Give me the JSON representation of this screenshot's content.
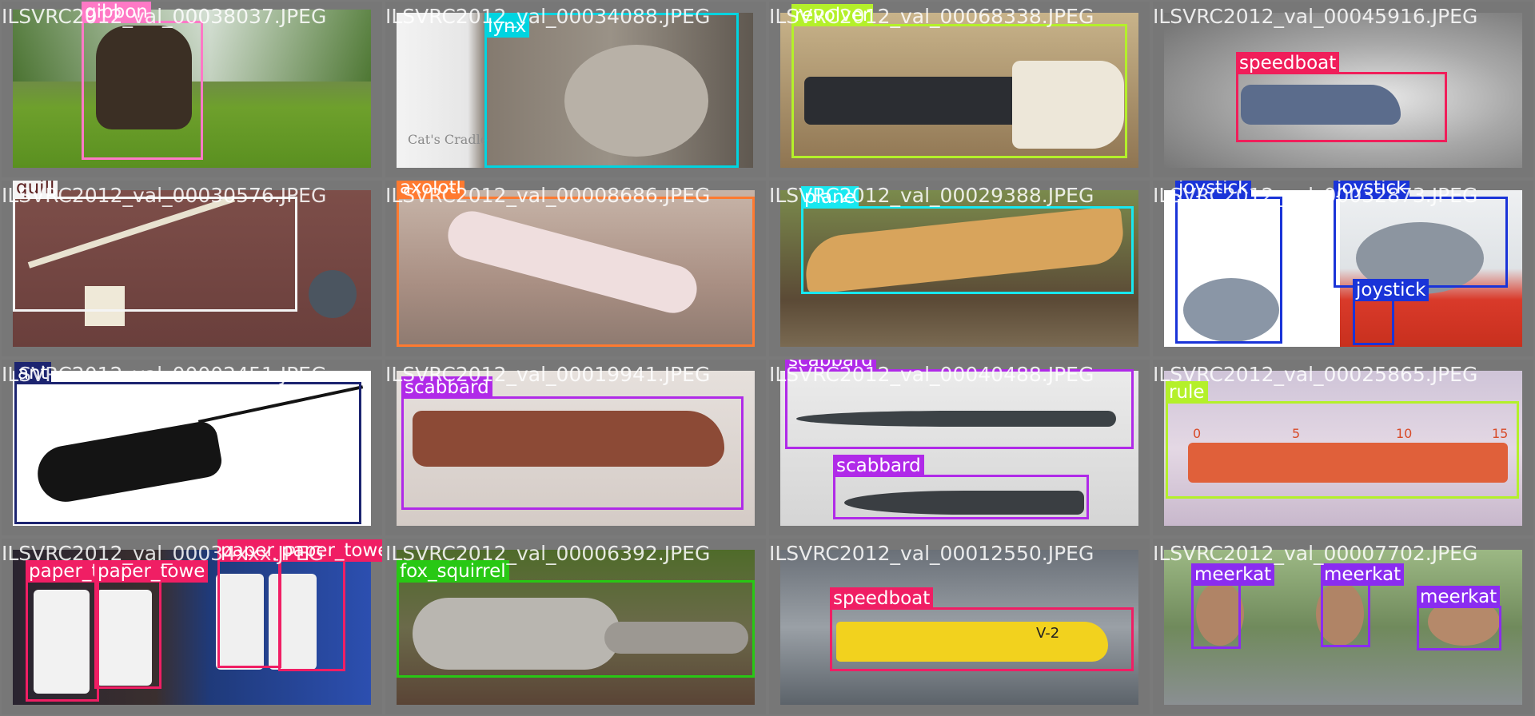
{
  "mosaic": {
    "images": [
      {
        "filename": "ILSVRC2012_val_00038037.JPEG",
        "scene": "grass park with trees",
        "objects": [
          {
            "label": "gibbon",
            "color": "#ff79c6"
          }
        ]
      },
      {
        "filename": "ILSVRC2012_val_00034088.JPEG",
        "scene": "lynx close-up",
        "objects": [
          {
            "label": "lynx",
            "color": "#00d4e0"
          }
        ],
        "texts": [
          {
            "text": "Cat's Cradle"
          }
        ]
      },
      {
        "filename": "ILSVRC2012_val_00068338.JPEG",
        "scene": "revolver on wooden planks",
        "objects": [
          {
            "label": "revolver",
            "color": "#b4f02a"
          }
        ]
      },
      {
        "filename": "ILSVRC2012_val_00045916.JPEG",
        "scene": "speedboat on spray",
        "objects": [
          {
            "label": "speedboat",
            "color": "#f01e5a"
          }
        ]
      },
      {
        "filename": "ILSVRC2012_val_00030576.JPEG",
        "scene": "quill pen on red wood",
        "objects": [
          {
            "label": "quill",
            "color": "#f4f4f4"
          }
        ]
      },
      {
        "filename": "ILSVRC2012_val_00008686.JPEG",
        "scene": "axolotl in tank",
        "objects": [
          {
            "label": "axolotl",
            "color": "#ff7a30"
          }
        ]
      },
      {
        "filename": "ILSVRC2012_val_00029388.JPEG",
        "scene": "wooden plane",
        "objects": [
          {
            "label": "plane",
            "color": "#18e8f0"
          }
        ]
      },
      {
        "filename": "ILSVRC2012_val_00032873.JPEG",
        "scene": "joysticks on white",
        "objects": [
          {
            "label": "joystick",
            "color": "#1a34d8"
          },
          {
            "label": "joystick",
            "color": "#1a34d8"
          },
          {
            "label": "joystick",
            "color": "#1a34d8"
          }
        ]
      },
      {
        "filename": "ILSVRC2012_val_00002451.JPEG",
        "scene": "ant line drawing",
        "objects": [
          {
            "label": "ant",
            "color": "#1c2470"
          }
        ]
      },
      {
        "filename": "ILSVRC2012_val_00019941.JPEG",
        "scene": "knife with leather sheath",
        "objects": [
          {
            "label": "scabbard",
            "color": "#b02ae8"
          }
        ]
      },
      {
        "filename": "ILSVRC2012_val_00040488.JPEG",
        "scene": "bayonet and scabbard",
        "objects": [
          {
            "label": "scabbard",
            "color": "#b02ae8"
          },
          {
            "label": "scabbard",
            "color": "#b02ae8"
          }
        ]
      },
      {
        "filename": "ILSVRC2012_val_00025865.JPEG",
        "scene": "orange ruler",
        "objects": [
          {
            "label": "rule",
            "color": "#b4f02a"
          }
        ],
        "texts": [
          {
            "text": "0"
          },
          {
            "text": "5"
          },
          {
            "text": "10"
          },
          {
            "text": "15"
          }
        ]
      },
      {
        "filename": "ILSVRC2012_val_00034xxx.JPEG",
        "scene": "paper towel rolls",
        "objects": [
          {
            "label": "paper_towe",
            "color": "#f01e64"
          },
          {
            "label": "paper_towe",
            "color": "#f01e64"
          },
          {
            "label": "paper_towel",
            "color": "#f01e64"
          },
          {
            "label": "paper_towel",
            "color": "#f01e64"
          }
        ]
      },
      {
        "filename": "ILSVRC2012_val_00006392.JPEG",
        "scene": "squirrel on log",
        "objects": [
          {
            "label": "fox_squirrel",
            "color": "#28c814"
          }
        ]
      },
      {
        "filename": "ILSVRC2012_val_00012550.JPEG",
        "scene": "yellow speedboat",
        "objects": [
          {
            "label": "speedboat",
            "color": "#f01e64"
          }
        ],
        "texts": [
          {
            "text": "V-2"
          }
        ]
      },
      {
        "filename": "ILSVRC2012_val_00007702.JPEG",
        "scene": "three meerkats",
        "objects": [
          {
            "label": "meerkat",
            "color": "#8a2cf0"
          },
          {
            "label": "meerkat",
            "color": "#8a2cf0"
          },
          {
            "label": "meerkat",
            "color": "#8a2cf0"
          }
        ]
      }
    ]
  }
}
